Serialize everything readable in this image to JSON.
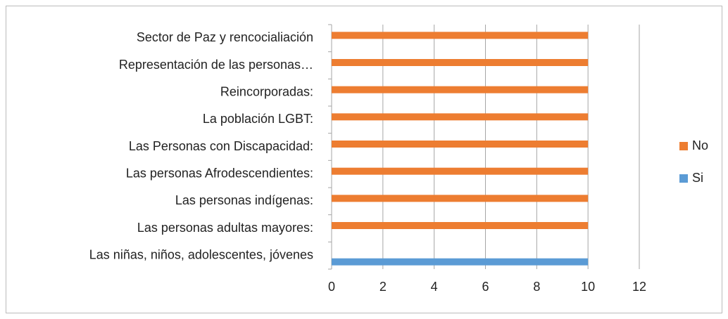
{
  "chart_data": {
    "type": "bar",
    "orientation": "horizontal",
    "categories": [
      "Las niñas, niños, adolescentes, jóvenes",
      "Las personas adultas mayores:",
      "Las personas indígenas:",
      "Las personas Afrodescendientes:",
      "Las Personas con Discapacidad:",
      "La población LGBT:",
      "Reincorporadas:",
      "Representación de las personas…",
      "Sector de Paz y rencocialiación"
    ],
    "series": [
      {
        "name": "No",
        "color": "#ed7d31",
        "values": [
          0,
          10,
          10,
          10,
          10,
          10,
          10,
          10,
          10
        ]
      },
      {
        "name": "Si",
        "color": "#5b9bd5",
        "values": [
          10,
          0,
          0,
          0,
          0,
          0,
          0,
          0,
          0
        ]
      }
    ],
    "xlim": [
      0,
      12
    ],
    "xticks": [
      0,
      2,
      4,
      6,
      8,
      10,
      12
    ],
    "grid": true,
    "legend": "right"
  }
}
